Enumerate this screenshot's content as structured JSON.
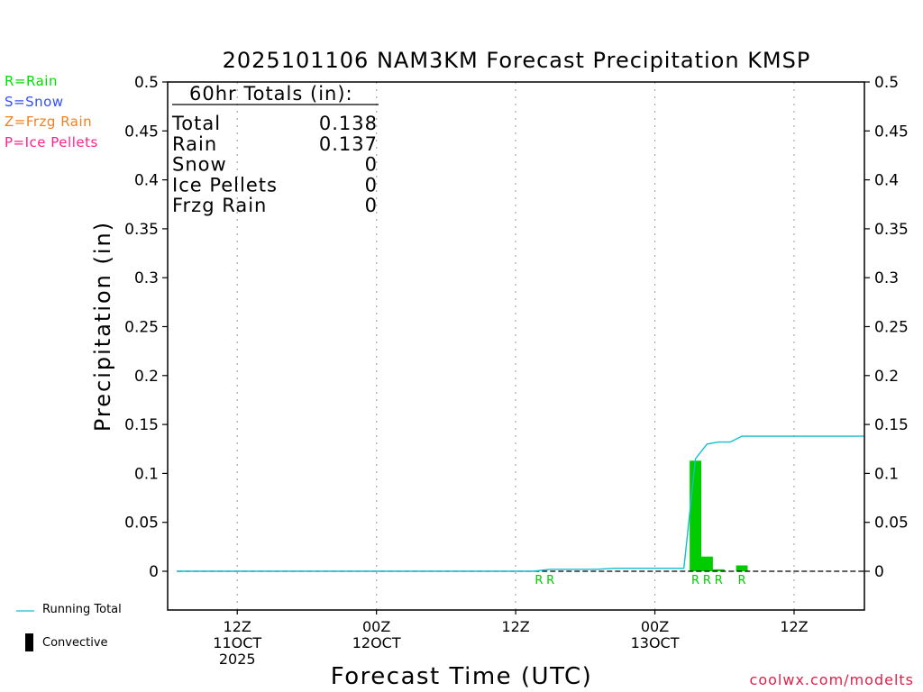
{
  "chart_data": {
    "type": "bar",
    "title": "2025101106 NAM3KM Forecast Precipitation KMSP",
    "xlabel": "Forecast Time (UTC)",
    "ylabel": "Precipitation (in)",
    "ylim": [
      -0.04,
      0.5
    ],
    "yticks": [
      0,
      0.05,
      0.1,
      0.15,
      0.2,
      0.25,
      0.3,
      0.35,
      0.4,
      0.45,
      0.5
    ],
    "ytick_labels": [
      "0",
      "0.05",
      "0.1",
      "0.15",
      "0.2",
      "0.25",
      "0.3",
      "0.35",
      "0.4",
      "0.45",
      "0.5"
    ],
    "xlim_hours": [
      0,
      60
    ],
    "xticks": [
      {
        "hour": 6,
        "label": [
          "12Z",
          "11OCT",
          "2025"
        ]
      },
      {
        "hour": 18,
        "label": [
          "00Z",
          "12OCT"
        ]
      },
      {
        "hour": 30,
        "label": [
          "12Z"
        ]
      },
      {
        "hour": 42,
        "label": [
          "00Z",
          "13OCT"
        ]
      },
      {
        "hour": 54,
        "label": [
          "12Z"
        ]
      }
    ],
    "grid": true,
    "bars": [
      {
        "hour": 45.5,
        "value": 0.113,
        "type": "R"
      },
      {
        "hour": 46.5,
        "value": 0.015,
        "type": "R"
      },
      {
        "hour": 47.5,
        "value": 0.002,
        "type": "R"
      },
      {
        "hour": 49.5,
        "value": 0.006,
        "type": "R"
      }
    ],
    "precip_type_markers": [
      {
        "hour": 32.0,
        "label": "R"
      },
      {
        "hour": 33.0,
        "label": "R"
      },
      {
        "hour": 45.5,
        "label": "R"
      },
      {
        "hour": 46.5,
        "label": "R"
      },
      {
        "hour": 47.5,
        "label": "R"
      },
      {
        "hour": 49.5,
        "label": "R"
      }
    ],
    "running_total": {
      "name": "Running Total",
      "x": [
        0.8,
        31.5,
        33,
        37,
        38.5,
        40,
        44.5,
        45.5,
        46.5,
        47.5,
        48.5,
        49.5,
        60
      ],
      "y": [
        0,
        0,
        0.002,
        0.002,
        0.003,
        0.003,
        0.003,
        0.115,
        0.13,
        0.132,
        0.132,
        0.138,
        0.138
      ]
    },
    "totals_box": {
      "heading": "60hr Totals (in):",
      "rows": [
        {
          "label": "Total",
          "value": "0.138"
        },
        {
          "label": "Rain",
          "value": "0.137"
        },
        {
          "label": "Snow",
          "value": "0"
        },
        {
          "label": "Ice Pellets",
          "value": "0"
        },
        {
          "label": "Frzg Rain",
          "value": "0"
        }
      ]
    },
    "legend": [
      {
        "text": "R=Rain",
        "color": "#00dd00"
      },
      {
        "text": "S=Snow",
        "color": "#3050ff"
      },
      {
        "text": "Z=Frzg Rain",
        "color": "#f08020"
      },
      {
        "text": "P=Ice Pellets",
        "color": "#ff2090"
      }
    ],
    "bottom_legend": {
      "running_total": "Running Total",
      "convective": "Convective"
    }
  },
  "colors": {
    "rain": "#00cc00",
    "running_total": "#10c0d0",
    "grid": "#aaaaaa",
    "credit": "#e0204a"
  },
  "credit": "coolwx.com/modelts"
}
